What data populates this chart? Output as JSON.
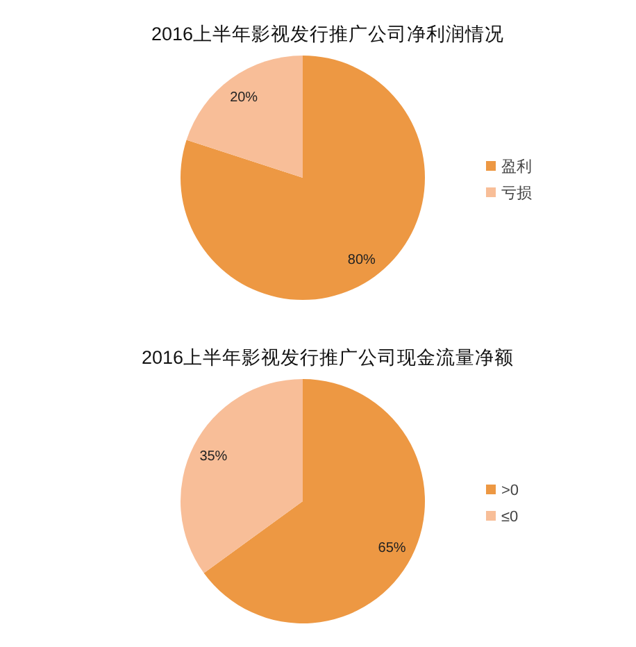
{
  "chart_data": [
    {
      "type": "pie",
      "title": "2016上半年影视发行推广公司净利润情况",
      "categories": [
        "盈利",
        "亏损"
      ],
      "values": [
        80,
        20
      ],
      "colors": [
        "#ed9843",
        "#f8be98"
      ],
      "value_labels": [
        "80%",
        "20%"
      ],
      "legend": "right"
    },
    {
      "type": "pie",
      "title": "2016上半年影视发行推广公司现金流量净额",
      "categories": [
        ">0",
        "≤0"
      ],
      "values": [
        65,
        35
      ],
      "colors": [
        "#ed9843",
        "#f8be98"
      ],
      "value_labels": [
        "65%",
        "35%"
      ],
      "legend": "right"
    }
  ]
}
